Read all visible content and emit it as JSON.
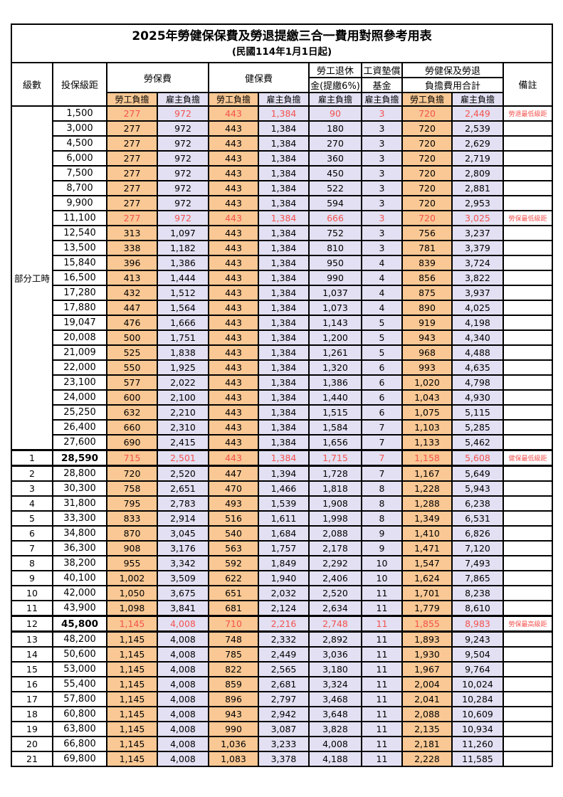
{
  "colors": {
    "employee_cell_orange": "#F9C894",
    "employer_cell_lavender": "#E2E0F2",
    "highlight_red": "#F4524E",
    "border_black": "#000000"
  },
  "title": {
    "line1": "2025年勞健保保費及勞退提繳三合一費用對照參考用表",
    "line2": "(民國114年1月1日起)"
  },
  "header": {
    "level": "級數",
    "bracket": "投保級距",
    "labor_fee": "勞保費",
    "health_fee": "健保費",
    "pension_l1": "勞工退休",
    "pension_l2": "金(提繳6%)",
    "fund_l1": "工資墊償",
    "fund_l2": "基金",
    "total_l1": "勞健保及勞退",
    "total_l2": "負擔費用合計",
    "note": "備註",
    "employee_share": "勞工負擔",
    "employer_share": "雇主負擔"
  },
  "table": {
    "group_label": "部分工時",
    "group_span": 23,
    "value_columns": [
      "勞保費-勞工負擔",
      "勞保費-雇主負擔",
      "健保費-勞工負擔",
      "健保費-雇主負擔",
      "勞工退休金(提繳6%)-雇主負擔",
      "工資墊償基金-雇主負擔",
      "合計-勞工負擔",
      "合計-雇主負擔"
    ],
    "rows": [
      {
        "lv": "",
        "br": "1,500",
        "v": [
          "277",
          "972",
          "443",
          "1,384",
          "90",
          "3",
          "720",
          "2,449"
        ],
        "note": "勞退最低級距",
        "red": true
      },
      {
        "lv": "",
        "br": "3,000",
        "v": [
          "277",
          "972",
          "443",
          "1,384",
          "180",
          "3",
          "720",
          "2,539"
        ],
        "note": ""
      },
      {
        "lv": "",
        "br": "4,500",
        "v": [
          "277",
          "972",
          "443",
          "1,384",
          "270",
          "3",
          "720",
          "2,629"
        ],
        "note": ""
      },
      {
        "lv": "",
        "br": "6,000",
        "v": [
          "277",
          "972",
          "443",
          "1,384",
          "360",
          "3",
          "720",
          "2,719"
        ],
        "note": ""
      },
      {
        "lv": "",
        "br": "7,500",
        "v": [
          "277",
          "972",
          "443",
          "1,384",
          "450",
          "3",
          "720",
          "2,809"
        ],
        "note": ""
      },
      {
        "lv": "",
        "br": "8,700",
        "v": [
          "277",
          "972",
          "443",
          "1,384",
          "522",
          "3",
          "720",
          "2,881"
        ],
        "note": ""
      },
      {
        "lv": "",
        "br": "9,900",
        "v": [
          "277",
          "972",
          "443",
          "1,384",
          "594",
          "3",
          "720",
          "2,953"
        ],
        "note": ""
      },
      {
        "lv": "",
        "br": "11,100",
        "v": [
          "277",
          "972",
          "443",
          "1,384",
          "666",
          "3",
          "720",
          "3,025"
        ],
        "note": "勞保最低級距",
        "red": true
      },
      {
        "lv": "",
        "br": "12,540",
        "v": [
          "313",
          "1,097",
          "443",
          "1,384",
          "752",
          "3",
          "756",
          "3,237"
        ],
        "note": ""
      },
      {
        "lv": "",
        "br": "13,500",
        "v": [
          "338",
          "1,182",
          "443",
          "1,384",
          "810",
          "3",
          "781",
          "3,379"
        ],
        "note": ""
      },
      {
        "lv": "",
        "br": "15,840",
        "v": [
          "396",
          "1,386",
          "443",
          "1,384",
          "950",
          "4",
          "839",
          "3,724"
        ],
        "note": ""
      },
      {
        "lv": "",
        "br": "16,500",
        "v": [
          "413",
          "1,444",
          "443",
          "1,384",
          "990",
          "4",
          "856",
          "3,822"
        ],
        "note": ""
      },
      {
        "lv": "",
        "br": "17,280",
        "v": [
          "432",
          "1,512",
          "443",
          "1,384",
          "1,037",
          "4",
          "875",
          "3,937"
        ],
        "note": ""
      },
      {
        "lv": "",
        "br": "17,880",
        "v": [
          "447",
          "1,564",
          "443",
          "1,384",
          "1,073",
          "4",
          "890",
          "4,025"
        ],
        "note": ""
      },
      {
        "lv": "",
        "br": "19,047",
        "v": [
          "476",
          "1,666",
          "443",
          "1,384",
          "1,143",
          "5",
          "919",
          "4,198"
        ],
        "note": ""
      },
      {
        "lv": "",
        "br": "20,008",
        "v": [
          "500",
          "1,751",
          "443",
          "1,384",
          "1,200",
          "5",
          "943",
          "4,340"
        ],
        "note": ""
      },
      {
        "lv": "",
        "br": "21,009",
        "v": [
          "525",
          "1,838",
          "443",
          "1,384",
          "1,261",
          "5",
          "968",
          "4,488"
        ],
        "note": ""
      },
      {
        "lv": "",
        "br": "22,000",
        "v": [
          "550",
          "1,925",
          "443",
          "1,384",
          "1,320",
          "6",
          "993",
          "4,635"
        ],
        "note": ""
      },
      {
        "lv": "",
        "br": "23,100",
        "v": [
          "577",
          "2,022",
          "443",
          "1,384",
          "1,386",
          "6",
          "1,020",
          "4,798"
        ],
        "note": ""
      },
      {
        "lv": "",
        "br": "24,000",
        "v": [
          "600",
          "2,100",
          "443",
          "1,384",
          "1,440",
          "6",
          "1,043",
          "4,930"
        ],
        "note": ""
      },
      {
        "lv": "",
        "br": "25,250",
        "v": [
          "632",
          "2,210",
          "443",
          "1,384",
          "1,515",
          "6",
          "1,075",
          "5,115"
        ],
        "note": ""
      },
      {
        "lv": "",
        "br": "26,400",
        "v": [
          "660",
          "2,310",
          "443",
          "1,384",
          "1,584",
          "7",
          "1,103",
          "5,285"
        ],
        "note": ""
      },
      {
        "lv": "",
        "br": "27,600",
        "v": [
          "690",
          "2,415",
          "443",
          "1,384",
          "1,656",
          "7",
          "1,133",
          "5,462"
        ],
        "note": ""
      },
      {
        "lv": "1",
        "br": "28,590",
        "v": [
          "715",
          "2,501",
          "443",
          "1,384",
          "1,715",
          "7",
          "1,158",
          "5,608"
        ],
        "note": "健保最低級距",
        "red": true,
        "bold": true,
        "thick": true
      },
      {
        "lv": "2",
        "br": "28,800",
        "v": [
          "720",
          "2,520",
          "447",
          "1,394",
          "1,728",
          "7",
          "1,167",
          "5,649"
        ],
        "note": ""
      },
      {
        "lv": "3",
        "br": "30,300",
        "v": [
          "758",
          "2,651",
          "470",
          "1,466",
          "1,818",
          "8",
          "1,228",
          "5,943"
        ],
        "note": ""
      },
      {
        "lv": "4",
        "br": "31,800",
        "v": [
          "795",
          "2,783",
          "493",
          "1,539",
          "1,908",
          "8",
          "1,288",
          "6,238"
        ],
        "note": ""
      },
      {
        "lv": "5",
        "br": "33,300",
        "v": [
          "833",
          "2,914",
          "516",
          "1,611",
          "1,998",
          "8",
          "1,349",
          "6,531"
        ],
        "note": ""
      },
      {
        "lv": "6",
        "br": "34,800",
        "v": [
          "870",
          "3,045",
          "540",
          "1,684",
          "2,088",
          "9",
          "1,410",
          "6,826"
        ],
        "note": ""
      },
      {
        "lv": "7",
        "br": "36,300",
        "v": [
          "908",
          "3,176",
          "563",
          "1,757",
          "2,178",
          "9",
          "1,471",
          "7,120"
        ],
        "note": ""
      },
      {
        "lv": "8",
        "br": "38,200",
        "v": [
          "955",
          "3,342",
          "592",
          "1,849",
          "2,292",
          "10",
          "1,547",
          "7,493"
        ],
        "note": ""
      },
      {
        "lv": "9",
        "br": "40,100",
        "v": [
          "1,002",
          "3,509",
          "622",
          "1,940",
          "2,406",
          "10",
          "1,624",
          "7,865"
        ],
        "note": ""
      },
      {
        "lv": "10",
        "br": "42,000",
        "v": [
          "1,050",
          "3,675",
          "651",
          "2,032",
          "2,520",
          "11",
          "1,701",
          "8,238"
        ],
        "note": ""
      },
      {
        "lv": "11",
        "br": "43,900",
        "v": [
          "1,098",
          "3,841",
          "681",
          "2,124",
          "2,634",
          "11",
          "1,779",
          "8,610"
        ],
        "note": ""
      },
      {
        "lv": "12",
        "br": "45,800",
        "v": [
          "1,145",
          "4,008",
          "710",
          "2,216",
          "2,748",
          "11",
          "1,855",
          "8,983"
        ],
        "note": "勞保最高級距",
        "red": true,
        "bold": true,
        "thick": true
      },
      {
        "lv": "13",
        "br": "48,200",
        "v": [
          "1,145",
          "4,008",
          "748",
          "2,332",
          "2,892",
          "11",
          "1,893",
          "9,243"
        ],
        "note": ""
      },
      {
        "lv": "14",
        "br": "50,600",
        "v": [
          "1,145",
          "4,008",
          "785",
          "2,449",
          "3,036",
          "11",
          "1,930",
          "9,504"
        ],
        "note": ""
      },
      {
        "lv": "15",
        "br": "53,000",
        "v": [
          "1,145",
          "4,008",
          "822",
          "2,565",
          "3,180",
          "11",
          "1,967",
          "9,764"
        ],
        "note": ""
      },
      {
        "lv": "16",
        "br": "55,400",
        "v": [
          "1,145",
          "4,008",
          "859",
          "2,681",
          "3,324",
          "11",
          "2,004",
          "10,024"
        ],
        "note": ""
      },
      {
        "lv": "17",
        "br": "57,800",
        "v": [
          "1,145",
          "4,008",
          "896",
          "2,797",
          "3,468",
          "11",
          "2,041",
          "10,284"
        ],
        "note": ""
      },
      {
        "lv": "18",
        "br": "60,800",
        "v": [
          "1,145",
          "4,008",
          "943",
          "2,942",
          "3,648",
          "11",
          "2,088",
          "10,609"
        ],
        "note": ""
      },
      {
        "lv": "19",
        "br": "63,800",
        "v": [
          "1,145",
          "4,008",
          "990",
          "3,087",
          "3,828",
          "11",
          "2,135",
          "10,934"
        ],
        "note": ""
      },
      {
        "lv": "20",
        "br": "66,800",
        "v": [
          "1,145",
          "4,008",
          "1,036",
          "3,233",
          "4,008",
          "11",
          "2,181",
          "11,260"
        ],
        "note": ""
      },
      {
        "lv": "21",
        "br": "69,800",
        "v": [
          "1,145",
          "4,008",
          "1,083",
          "3,378",
          "4,188",
          "11",
          "2,228",
          "11,585"
        ],
        "note": ""
      }
    ]
  }
}
